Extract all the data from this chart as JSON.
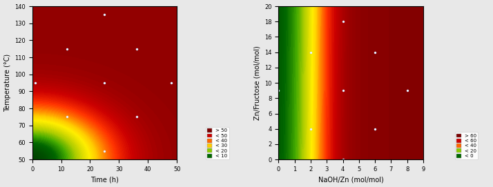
{
  "plot1": {
    "xlabel": "Time (h)",
    "ylabel": "Temperature (°C)",
    "xlim": [
      0,
      50
    ],
    "ylim": [
      50,
      140
    ],
    "xticks": [
      0,
      10,
      20,
      30,
      40,
      50
    ],
    "yticks": [
      50,
      60,
      70,
      80,
      90,
      100,
      110,
      120,
      130,
      140
    ],
    "scatter_points": [
      [
        1,
        95
      ],
      [
        12,
        115
      ],
      [
        25,
        135
      ],
      [
        25,
        95
      ],
      [
        12,
        75
      ],
      [
        25,
        55
      ],
      [
        36,
        115
      ],
      [
        36,
        75
      ],
      [
        48,
        95
      ]
    ],
    "legend_labels": [
      "> 50",
      "< 50",
      "< 40",
      "< 30",
      "< 20",
      "< 10"
    ],
    "legend_colors": [
      "#7B0000",
      "#CC0000",
      "#FF6600",
      "#FFCC00",
      "#88CC00",
      "#006600"
    ]
  },
  "plot2": {
    "xlabel": "NaOH/Zn (mol/mol)",
    "ylabel": "Zn/Fructose (mol/mol)",
    "xlim": [
      0,
      9
    ],
    "ylim": [
      0,
      20
    ],
    "xticks": [
      0,
      1,
      2,
      3,
      4,
      5,
      6,
      7,
      8,
      9
    ],
    "yticks": [
      0,
      2,
      4,
      6,
      8,
      10,
      12,
      14,
      16,
      18,
      20
    ],
    "scatter_points": [
      [
        0,
        9
      ],
      [
        2,
        14
      ],
      [
        4,
        18
      ],
      [
        4,
        9
      ],
      [
        2,
        4
      ],
      [
        4,
        0
      ],
      [
        6,
        14
      ],
      [
        6,
        4
      ],
      [
        8,
        9
      ]
    ],
    "legend_labels": [
      "> 60",
      "< 60",
      "< 40",
      "< 20",
      "< 0"
    ],
    "legend_colors": [
      "#7B0000",
      "#CC0000",
      "#FF6600",
      "#88CC00",
      "#006600"
    ]
  }
}
